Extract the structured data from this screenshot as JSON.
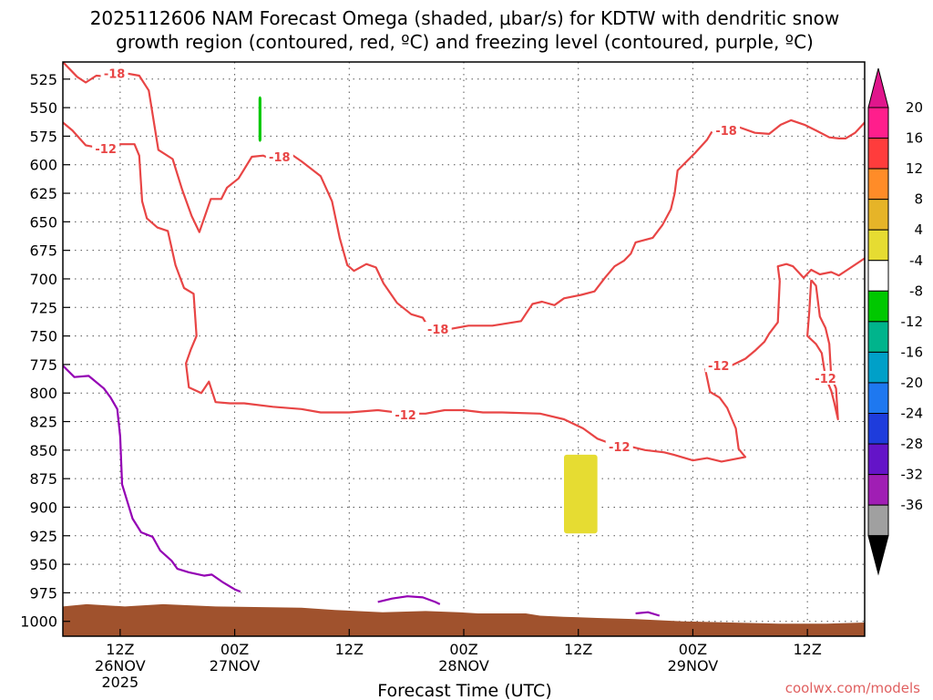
{
  "title_line1": "2025112606 NAM Forecast Omega (shaded, μbar/s) for KDTW with dendritic snow",
  "title_line2": "growth region (contoured, red, ºC) and freezing level (contoured, purple, ºC)",
  "credit": "coolwx.com/models",
  "chart_data": {
    "type": "time-height section",
    "xlabel": "Forecast Time (UTC)",
    "ylabel": "",
    "x_unit": "forecast hour",
    "xlim": [
      0,
      84
    ],
    "ylim": [
      510,
      1013
    ],
    "y_axis": "pressure (hPa, increasing downward)",
    "grid": true,
    "y_ticks": [
      525,
      550,
      575,
      600,
      625,
      650,
      675,
      700,
      725,
      750,
      775,
      800,
      825,
      850,
      875,
      900,
      925,
      950,
      975,
      1000
    ],
    "x_ticks": [
      {
        "hour": 6,
        "line1": "12Z",
        "line2": "26NOV",
        "line3": "2025"
      },
      {
        "hour": 18,
        "line1": "00Z",
        "line2": "27NOV",
        "line3": ""
      },
      {
        "hour": 30,
        "line1": "12Z",
        "line2": "",
        "line3": ""
      },
      {
        "hour": 42,
        "line1": "00Z",
        "line2": "28NOV",
        "line3": ""
      },
      {
        "hour": 54,
        "line1": "12Z",
        "line2": "",
        "line3": ""
      },
      {
        "hour": 66,
        "line1": "00Z",
        "line2": "29NOV",
        "line3": ""
      },
      {
        "hour": 78,
        "line1": "12Z",
        "line2": "",
        "line3": ""
      }
    ],
    "colorbar": {
      "labels": [
        "20",
        "16",
        "12",
        "8",
        "4",
        "-4",
        "-8",
        "-12",
        "-16",
        "-20",
        "-24",
        "-28",
        "-32",
        "-36"
      ],
      "bins": [
        "#ff1e8c",
        "#ff3c3c",
        "#ff8c28",
        "#e6b428",
        "#e6dc32",
        "#ffffff",
        "#00c800",
        "#00b48c",
        "#00a0c8",
        "#1e78f0",
        "#1e3cdc",
        "#6414c8",
        "#a01eb4",
        "#a0a0a0"
      ],
      "top_arrow": "#e0168c",
      "bottom_arrow": "#000000"
    },
    "series": [
      {
        "name": "-18",
        "color": "#e84545",
        "points": [
          [
            0,
            510
          ],
          [
            1.5,
            523
          ],
          [
            2.4,
            528
          ],
          [
            3.5,
            522
          ],
          [
            5,
            523
          ],
          [
            6,
            519
          ],
          [
            8,
            522
          ],
          [
            9,
            535
          ],
          [
            10,
            587
          ],
          [
            11.5,
            595
          ],
          [
            12.5,
            622
          ],
          [
            13.5,
            645
          ],
          [
            14.3,
            659
          ],
          [
            15.5,
            630
          ],
          [
            16.6,
            630
          ],
          [
            17.2,
            620
          ],
          [
            18.4,
            612
          ],
          [
            19.8,
            593
          ],
          [
            21,
            592
          ],
          [
            22.3,
            597
          ],
          [
            23.6,
            589
          ],
          [
            25,
            597
          ],
          [
            27,
            610
          ],
          [
            28.2,
            632
          ],
          [
            29,
            664
          ],
          [
            29.8,
            688
          ],
          [
            30.5,
            693
          ],
          [
            31.8,
            687
          ],
          [
            32.8,
            690
          ],
          [
            33.6,
            704
          ],
          [
            35,
            721
          ],
          [
            36.5,
            731
          ],
          [
            37.7,
            734
          ],
          [
            38.4,
            744
          ],
          [
            40.5,
            744
          ],
          [
            42.5,
            741
          ],
          [
            45,
            741
          ],
          [
            48,
            737
          ],
          [
            49.2,
            722
          ],
          [
            50.2,
            720
          ],
          [
            51.5,
            723
          ],
          [
            52.5,
            717
          ],
          [
            54.3,
            714
          ],
          [
            55.7,
            711
          ],
          [
            56.8,
            699
          ],
          [
            57.8,
            689
          ],
          [
            58.8,
            684
          ],
          [
            59.5,
            678
          ],
          [
            60,
            668
          ],
          [
            61.8,
            664
          ],
          [
            62.8,
            653
          ],
          [
            63.7,
            639
          ],
          [
            64.1,
            625
          ],
          [
            64.4,
            605
          ],
          [
            66.2,
            590
          ],
          [
            67.5,
            578
          ],
          [
            68,
            571
          ]
        ]
      },
      {
        "name": "-18",
        "color": "#e84545",
        "points": [
          [
            70.8,
            567
          ],
          [
            72.5,
            572
          ],
          [
            74,
            573
          ],
          [
            75.2,
            565
          ],
          [
            76.3,
            561
          ],
          [
            77.7,
            565
          ],
          [
            78.9,
            570
          ],
          [
            80.3,
            576
          ],
          [
            81.3,
            577
          ],
          [
            82,
            577
          ],
          [
            83,
            572
          ],
          [
            84,
            563
          ]
        ]
      },
      {
        "name": "-12",
        "color": "#e84545",
        "points": [
          [
            0,
            563
          ],
          [
            1,
            570
          ],
          [
            2.4,
            583
          ],
          [
            4.3,
            586
          ],
          [
            6,
            582
          ],
          [
            7.5,
            582
          ],
          [
            8,
            592
          ],
          [
            8.3,
            632
          ],
          [
            8.8,
            647
          ],
          [
            9.9,
            655
          ],
          [
            11,
            658
          ],
          [
            11.8,
            688
          ],
          [
            12.7,
            708
          ],
          [
            13.7,
            713
          ],
          [
            14,
            750
          ],
          [
            13.4,
            762
          ],
          [
            12.9,
            774
          ],
          [
            13.2,
            795
          ],
          [
            14.5,
            800
          ],
          [
            15.3,
            790
          ],
          [
            16,
            808
          ],
          [
            17.5,
            809
          ],
          [
            19,
            809
          ],
          [
            22,
            812
          ],
          [
            25,
            814
          ],
          [
            27,
            817
          ],
          [
            30,
            817
          ],
          [
            33,
            815
          ],
          [
            36,
            818
          ],
          [
            38,
            818
          ],
          [
            40,
            815
          ],
          [
            42,
            815
          ],
          [
            44,
            817
          ],
          [
            46,
            817
          ],
          [
            50,
            818
          ],
          [
            52.5,
            823
          ],
          [
            54.5,
            831
          ],
          [
            56,
            840
          ],
          [
            57,
            843
          ],
          [
            58,
            846
          ],
          [
            59.5,
            847
          ],
          [
            61,
            850
          ],
          [
            63,
            852
          ],
          [
            64,
            854
          ],
          [
            66,
            859
          ],
          [
            67.5,
            857
          ],
          [
            69,
            860
          ],
          [
            71.5,
            856
          ],
          [
            70.8,
            849
          ],
          [
            70.5,
            831
          ],
          [
            69.6,
            813
          ],
          [
            68.8,
            804
          ],
          [
            67.8,
            799
          ],
          [
            67.3,
            779
          ],
          [
            69,
            775
          ],
          [
            70,
            776
          ],
          [
            71.5,
            770
          ],
          [
            72.5,
            763
          ],
          [
            73.5,
            755
          ],
          [
            74,
            748
          ],
          [
            74.9,
            738
          ],
          [
            75.1,
            702
          ],
          [
            74.9,
            689
          ],
          [
            75.8,
            687
          ],
          [
            76.5,
            689
          ],
          [
            77.6,
            699
          ],
          [
            78.4,
            692
          ],
          [
            79.3,
            696
          ],
          [
            80.5,
            694
          ],
          [
            81.3,
            697
          ],
          [
            82.2,
            692
          ],
          [
            84,
            682
          ]
        ]
      },
      {
        "name": "-12",
        "color": "#e84545",
        "points": [
          [
            78.4,
            701
          ],
          [
            78.9,
            706
          ],
          [
            79.3,
            733
          ],
          [
            79.9,
            743
          ],
          [
            80.3,
            757
          ],
          [
            80.5,
            786
          ],
          [
            81,
            796
          ],
          [
            81.2,
            823
          ],
          [
            80.8,
            808
          ],
          [
            80.5,
            798
          ],
          [
            79.9,
            786
          ],
          [
            79.5,
            765
          ],
          [
            78.9,
            757
          ],
          [
            78,
            750
          ],
          [
            78.2,
            729
          ],
          [
            78.4,
            701
          ]
        ]
      }
    ],
    "freezing_level": [
      {
        "name": "freezing level",
        "color": "#9400b4",
        "points": [
          [
            0,
            776
          ],
          [
            1.2,
            786
          ],
          [
            2.7,
            785
          ],
          [
            4.3,
            796
          ],
          [
            5,
            804
          ],
          [
            5.7,
            814
          ],
          [
            6,
            838
          ],
          [
            6.2,
            880
          ],
          [
            7.3,
            910
          ],
          [
            8.2,
            922
          ],
          [
            9.4,
            926
          ],
          [
            10.2,
            938
          ],
          [
            11.4,
            947
          ],
          [
            12,
            954
          ],
          [
            13.2,
            957
          ],
          [
            14.8,
            960
          ],
          [
            15.6,
            959
          ],
          [
            16.8,
            966
          ],
          [
            18,
            972
          ],
          [
            18.6,
            974
          ]
        ]
      },
      {
        "name": "freezing level",
        "color": "#9400b4",
        "points": [
          [
            33,
            983
          ],
          [
            34.5,
            980
          ],
          [
            36.1,
            978
          ],
          [
            37.7,
            979
          ],
          [
            39,
            983
          ],
          [
            39.5,
            985
          ]
        ]
      },
      {
        "name": "freezing level",
        "color": "#9400b4",
        "points": [
          [
            60,
            993
          ],
          [
            61.3,
            992
          ],
          [
            62.5,
            995
          ]
        ]
      }
    ],
    "contour_labels": [
      {
        "text": "-18",
        "x": 5.4,
        "y": 520
      },
      {
        "text": "-18",
        "x": 22.7,
        "y": 593
      },
      {
        "text": "-18",
        "x": 39.3,
        "y": 744
      },
      {
        "text": "-18",
        "x": 69.5,
        "y": 570
      },
      {
        "text": "-12",
        "x": 4.5,
        "y": 586
      },
      {
        "text": "-12",
        "x": 35.9,
        "y": 819
      },
      {
        "text": "-12",
        "x": 58.3,
        "y": 847
      },
      {
        "text": "-12",
        "x": 68.7,
        "y": 776
      },
      {
        "text": "-12",
        "x": 79.9,
        "y": 787
      }
    ],
    "omega_shading": [
      {
        "bin": "4 to 8",
        "color": "#e6dc32",
        "hour_range": [
          52.5,
          56.0
        ],
        "pressure_range": [
          854,
          923
        ]
      },
      {
        "bin": "-4 to -8",
        "color": "#00c800",
        "hour_range": [
          20.5,
          20.8
        ],
        "pressure_range": [
          540,
          580
        ]
      }
    ],
    "terrain": {
      "color": "#a0522d",
      "surface": [
        [
          0,
          987
        ],
        [
          2.5,
          985
        ],
        [
          6.5,
          987
        ],
        [
          10.5,
          985
        ],
        [
          16,
          987
        ],
        [
          25,
          988
        ],
        [
          28.5,
          990
        ],
        [
          33.5,
          992
        ],
        [
          38,
          991
        ],
        [
          41.5,
          992
        ],
        [
          43.5,
          993
        ],
        [
          48.5,
          993
        ],
        [
          50,
          995
        ],
        [
          52.5,
          996
        ],
        [
          56,
          997
        ],
        [
          60,
          998
        ],
        [
          65,
          1000
        ],
        [
          70,
          1001
        ],
        [
          75,
          1002
        ],
        [
          80,
          1002
        ],
        [
          84,
          1001
        ]
      ]
    }
  }
}
